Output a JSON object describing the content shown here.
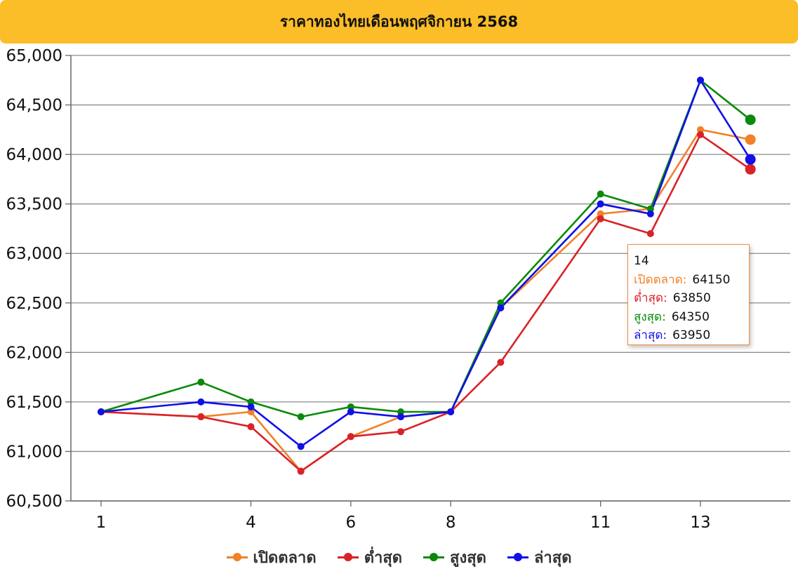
{
  "header": {
    "title": "ราคาทองไทยเดือนพฤศจิกายน 2568",
    "background_color": "#fbbd28"
  },
  "chart_data": {
    "type": "line",
    "title": "ราคาทองไทยเดือนพฤศจิกายน 2568",
    "xlabel": "",
    "ylabel": "",
    "x": [
      1,
      3,
      4,
      5,
      6,
      7,
      8,
      9,
      11,
      12,
      13,
      14
    ],
    "x_tick_labels": [
      "1",
      "4",
      "6",
      "8",
      "11",
      "13"
    ],
    "x_tick_values": [
      1,
      4,
      6,
      8,
      11,
      13
    ],
    "ylim": [
      60500,
      65000
    ],
    "y_ticks": [
      60500,
      61000,
      61500,
      62000,
      62500,
      63000,
      63500,
      64000,
      64500,
      65000
    ],
    "y_tick_labels": [
      "60,500",
      "61,000",
      "61,500",
      "62,000",
      "62,500",
      "63,000",
      "63,500",
      "64,000",
      "64,500",
      "65,000"
    ],
    "grid": "horizontal",
    "legend_position": "bottom",
    "series": [
      {
        "name": "เปิดตลาด",
        "color": "#f08128",
        "values": [
          61400,
          61350,
          61400,
          60800,
          61150,
          61350,
          61400,
          62450,
          63400,
          63450,
          64250,
          64150
        ]
      },
      {
        "name": "ต่ำสุด",
        "color": "#d92228",
        "values": [
          61400,
          61350,
          61250,
          60800,
          61150,
          61200,
          61400,
          61900,
          63350,
          63200,
          64200,
          63850
        ]
      },
      {
        "name": "สูงสุด",
        "color": "#0a8a0a",
        "values": [
          61400,
          61700,
          61500,
          61350,
          61450,
          61400,
          61400,
          62500,
          63600,
          63450,
          64750,
          64350
        ]
      },
      {
        "name": "ล่าสุด",
        "color": "#1010e8",
        "values": [
          61400,
          61500,
          61450,
          61050,
          61400,
          61350,
          61400,
          62450,
          63500,
          63400,
          64750,
          63950
        ]
      }
    ],
    "tooltip": {
      "x_label": "14",
      "rows": [
        {
          "label": "เปิดตลาด:",
          "value": "64150",
          "color": "#f08128"
        },
        {
          "label": "ต่ำสุด:",
          "value": "63850",
          "color": "#d92228"
        },
        {
          "label": "สูงสุด:",
          "value": "64350",
          "color": "#0a8a0a"
        },
        {
          "label": "ล่าสุด:",
          "value": "63950",
          "color": "#1010e8"
        }
      ]
    }
  }
}
